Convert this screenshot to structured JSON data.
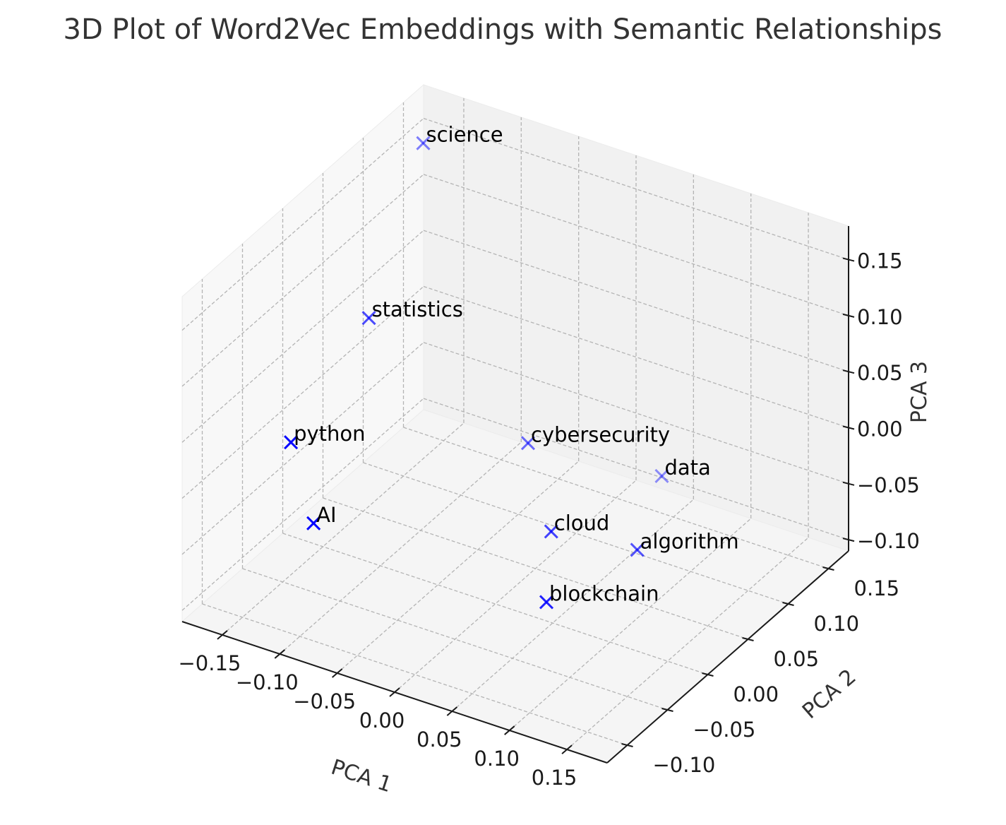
{
  "chart_data": {
    "type": "scatter",
    "title": "3D Plot of Word2Vec Embeddings with Semantic Relationships",
    "xlabel": "PCA 1",
    "ylabel": "PCA 2",
    "zlabel": "PCA 3",
    "x_ticks": [
      "−0.15",
      "−0.10",
      "−0.05",
      "0.00",
      "0.05",
      "0.10",
      "0.15"
    ],
    "y_ticks": [
      "−0.10",
      "−0.05",
      "0.00",
      "0.05",
      "0.10",
      "0.15"
    ],
    "z_ticks": [
      "−0.10",
      "−0.05",
      "0.00",
      "0.05",
      "0.10",
      "0.15"
    ],
    "xlim": [
      -0.185,
      0.185
    ],
    "ylim": [
      -0.125,
      0.175
    ],
    "zlim": [
      -0.11,
      0.18
    ],
    "grid": true,
    "marker": "x",
    "marker_color": "#0000ff",
    "points": [
      {
        "word": "science",
        "x": -0.165,
        "y": 0.146,
        "z": 0.153
      },
      {
        "word": "statistics",
        "x": -0.138,
        "y": 0.04,
        "z": 0.073
      },
      {
        "word": "python",
        "x": -0.105,
        "y": -0.104,
        "z": 0.064
      },
      {
        "word": "AI",
        "x": -0.072,
        "y": -0.123,
        "z": 0.015
      },
      {
        "word": "cybersecurity",
        "x": -0.045,
        "y": 0.105,
        "z": -0.048
      },
      {
        "word": "cloud",
        "x": 0.034,
        "y": 0.021,
        "z": -0.047
      },
      {
        "word": "algorithm",
        "x": 0.083,
        "y": 0.058,
        "z": -0.07
      },
      {
        "word": "blockchain",
        "x": 0.081,
        "y": -0.052,
        "z": -0.048
      },
      {
        "word": "data",
        "x": 0.014,
        "y": 0.187,
        "z": -0.109
      }
    ]
  }
}
